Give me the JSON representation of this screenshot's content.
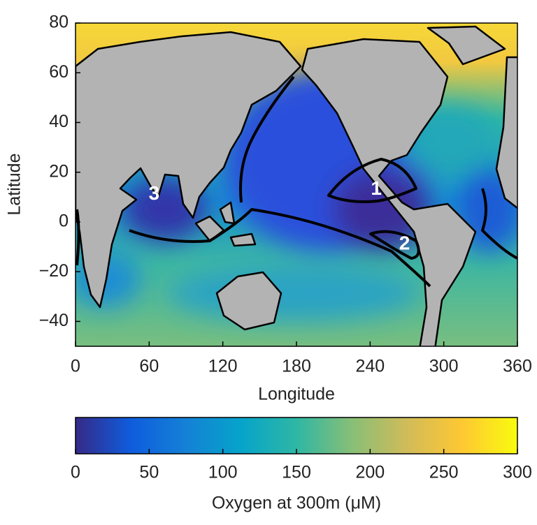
{
  "chart_data": {
    "type": "map",
    "xlabel": "Longitude",
    "ylabel": "Latitude",
    "xlim": [
      0,
      360
    ],
    "ylim": [
      -50,
      80
    ],
    "xticks": [
      0,
      60,
      120,
      180,
      240,
      300,
      360
    ],
    "yticks": [
      {
        "value": -40,
        "label": "−40"
      },
      {
        "value": -20,
        "label": "−20"
      },
      0,
      20,
      40,
      60,
      80
    ],
    "colorbar": {
      "label": "Oxygen at 300m (μM)",
      "lim": [
        0,
        300
      ],
      "ticks": [
        0,
        50,
        100,
        150,
        200,
        250,
        300
      ],
      "colors": [
        "#352a87",
        "#0f5cdd",
        "#1481d6",
        "#06a4ca",
        "#2eb7a4",
        "#87bf77",
        "#d1bb59",
        "#fec832",
        "#f9fb0e"
      ]
    },
    "annotations": [
      {
        "text": "1",
        "x": 245,
        "y": 13
      },
      {
        "text": "2",
        "x": 268,
        "y": -9
      },
      {
        "text": "3",
        "x": 64,
        "y": 11
      }
    ]
  }
}
